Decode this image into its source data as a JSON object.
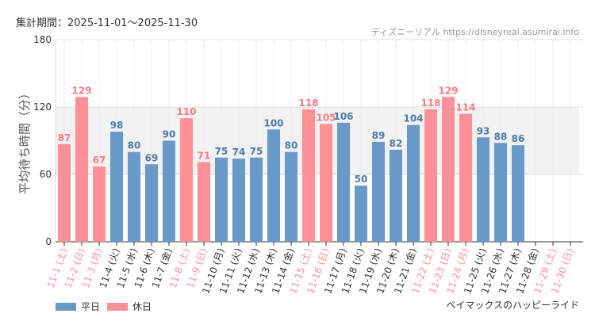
{
  "header": {
    "period": "集計期間：2025-11-01〜2025-11-30",
    "source": "ディズニーリアル https://disneyreal.asumirai.info"
  },
  "colors": {
    "weekday": "#6899c8",
    "holiday": "#ff9095",
    "weekday_label": "#4a7aaa",
    "holiday_label": "#ff7a80"
  },
  "chart_data": {
    "type": "bar",
    "title": "ベイマックスのハッピーライド",
    "ylabel": "平均待ち時間（分）",
    "ylim": [
      0,
      180
    ],
    "yticks": [
      0,
      60,
      120,
      180
    ],
    "shaded_band": [
      60,
      120
    ],
    "legend": [
      {
        "name": "平日",
        "key": "weekday"
      },
      {
        "name": "休日",
        "key": "holiday"
      }
    ],
    "legend_position": "bottom-left",
    "categories": [
      "11-1 (土)",
      "11-2 (日)",
      "11-3 (月)",
      "11-4 (火)",
      "11-5 (水)",
      "11-6 (木)",
      "11-7 (金)",
      "11-8 (土)",
      "11-9 (日)",
      "11-10 (月)",
      "11-11 (火)",
      "11-12 (水)",
      "11-13 (木)",
      "11-14 (金)",
      "11-15 (土)",
      "11-16 (日)",
      "11-17 (月)",
      "11-18 (火)",
      "11-19 (水)",
      "11-20 (木)",
      "11-21 (金)",
      "11-22 (土)",
      "11-23 (日)",
      "11-24 (月)",
      "11-25 (火)",
      "11-26 (水)",
      "11-27 (木)",
      "11-28 (金)",
      "11-29 (土)",
      "11-30 (日)"
    ],
    "day_type": [
      "holiday",
      "holiday",
      "holiday",
      "weekday",
      "weekday",
      "weekday",
      "weekday",
      "holiday",
      "holiday",
      "weekday",
      "weekday",
      "weekday",
      "weekday",
      "weekday",
      "holiday",
      "holiday",
      "weekday",
      "weekday",
      "weekday",
      "weekday",
      "weekday",
      "holiday",
      "holiday",
      "holiday",
      "weekday",
      "weekday",
      "weekday",
      "weekday",
      "holiday",
      "holiday"
    ],
    "values": [
      87,
      129,
      67,
      98,
      80,
      69,
      90,
      110,
      71,
      75,
      74,
      75,
      100,
      80,
      118,
      105,
      106,
      50,
      89,
      82,
      104,
      118,
      129,
      114,
      93,
      88,
      86,
      null,
      null,
      null
    ]
  }
}
